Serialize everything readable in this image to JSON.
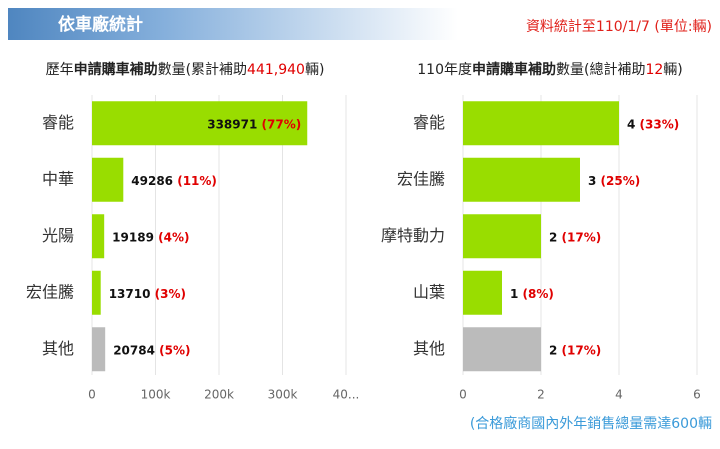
{
  "header": {
    "title": "依車廠統計",
    "note": "資料統計至110/1/7 (單位:輛)"
  },
  "footer": "(合格廠商國內外年銷售總量需達600輛",
  "chart_data": [
    {
      "type": "bar",
      "orientation": "horizontal",
      "title_parts": [
        "歷年",
        "申請購車補助",
        "數量(累計補助",
        "441,940",
        "輛)"
      ],
      "categories": [
        "睿能",
        "中華",
        "光陽",
        "宏佳騰",
        "其他"
      ],
      "values": [
        338971,
        49286,
        19189,
        13710,
        20784
      ],
      "percent_labels": [
        "(77%)",
        "(11%)",
        "(4%)",
        "(3%)",
        "(5%)"
      ],
      "colors": [
        "#99dd00",
        "#99dd00",
        "#99dd00",
        "#99dd00",
        "#bbbbbb"
      ],
      "xlim": [
        0,
        400000
      ],
      "xticks": [
        0,
        {
          "value": 100000,
          "label": "100k"
        },
        {
          "value": 200000,
          "label": "200k"
        },
        {
          "value": 300000,
          "label": "300k"
        },
        {
          "value": 400000,
          "label": "40..."
        }
      ],
      "grid": true
    },
    {
      "type": "bar",
      "orientation": "horizontal",
      "title_parts": [
        "110年度",
        "申請購車補助",
        "數量(總計補助",
        "12",
        "輛)"
      ],
      "categories": [
        "睿能",
        "宏佳騰",
        "摩特動力",
        "山葉",
        "其他"
      ],
      "values": [
        4,
        3,
        2,
        1,
        2
      ],
      "percent_labels": [
        "(33%)",
        "(25%)",
        "(17%)",
        "(8%)",
        "(17%)"
      ],
      "colors": [
        "#99dd00",
        "#99dd00",
        "#99dd00",
        "#99dd00",
        "#bbbbbb"
      ],
      "xlim": [
        0,
        6
      ],
      "xticks": [
        0,
        2,
        4,
        6
      ],
      "grid": true
    }
  ]
}
